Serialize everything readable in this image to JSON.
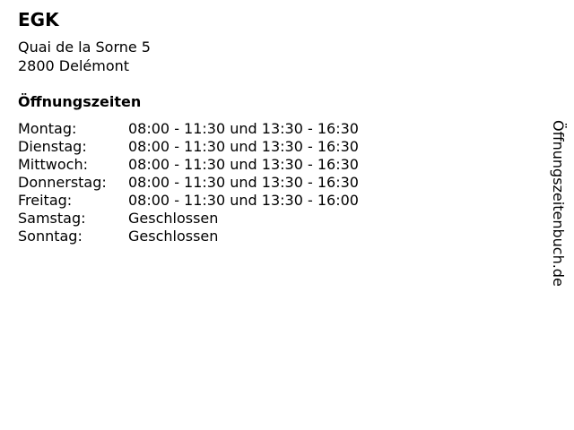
{
  "title": "EGK",
  "address": {
    "street": "Quai de la Sorne 5",
    "city": "2800 Delémont"
  },
  "hours_heading": "Öffnungszeiten",
  "hours": [
    {
      "day": "Montag:",
      "time": "08:00 - 11:30 und 13:30 - 16:30"
    },
    {
      "day": "Dienstag:",
      "time": "08:00 - 11:30 und 13:30 - 16:30"
    },
    {
      "day": "Mittwoch:",
      "time": "08:00 - 11:30 und 13:30 - 16:30"
    },
    {
      "day": "Donnerstag:",
      "time": "08:00 - 11:30 und 13:30 - 16:30"
    },
    {
      "day": "Freitag:",
      "time": "08:00 - 11:30 und 13:30 - 16:00"
    },
    {
      "day": "Samstag:",
      "time": "Geschlossen"
    },
    {
      "day": "Sonntag:",
      "time": "Geschlossen"
    }
  ],
  "watermark": "Öffnungszeitenbuch.de"
}
